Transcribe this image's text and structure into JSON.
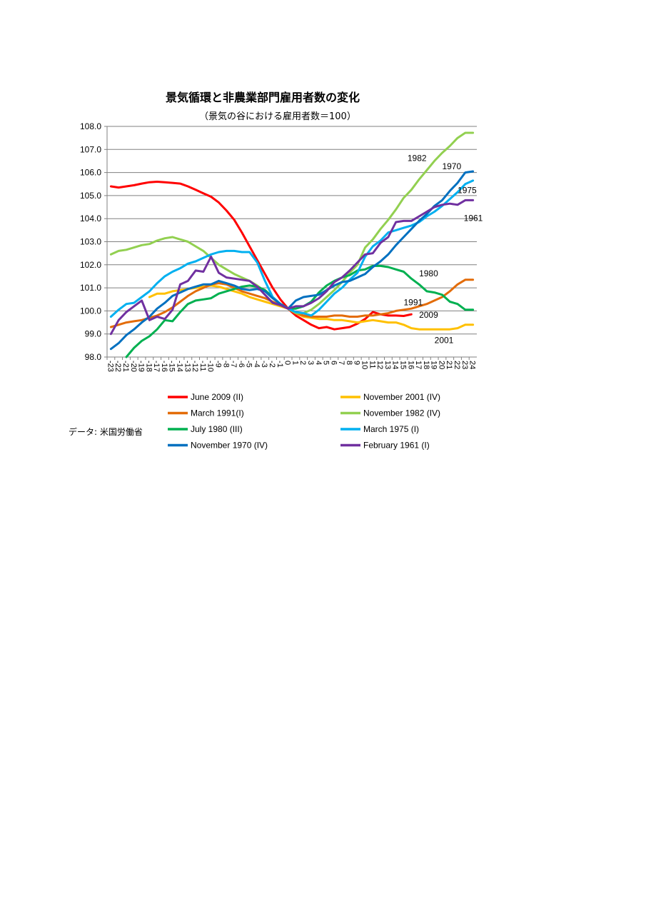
{
  "page": {
    "title": "景気循環と非農業部門雇用者数の変化",
    "subtitle": "（景気の谷における雇用者数＝100）",
    "source": "データ: 米国労働省"
  },
  "chart_data": {
    "type": "line",
    "title": "景気循環と非農業部門雇用者数の変化",
    "subtitle": "（景気の谷における雇用者数＝100）",
    "xlabel": "",
    "ylabel": "",
    "ylim": [
      98.0,
      108.0
    ],
    "yticks": [
      "108.0",
      "107.0",
      "106.0",
      "105.0",
      "104.0",
      "103.0",
      "102.0",
      "101.0",
      "100.0",
      "99.0",
      "98.0"
    ],
    "x": [
      -23,
      -22,
      -21,
      -20,
      -19,
      -18,
      -17,
      -16,
      -15,
      -14,
      -13,
      -12,
      -11,
      -10,
      -9,
      -8,
      -7,
      -6,
      -5,
      -4,
      -3,
      -2,
      -1,
      0,
      1,
      2,
      3,
      4,
      5,
      6,
      7,
      8,
      9,
      10,
      11,
      12,
      13,
      14,
      15,
      16,
      17,
      18,
      19,
      20,
      21,
      22,
      23,
      24
    ],
    "grid": true,
    "legend_position": "bottom",
    "series": [
      {
        "name": "June 2009 (II)",
        "color": "#ff0000",
        "values": [
          105.4,
          105.35,
          105.4,
          105.45,
          105.52,
          105.58,
          105.6,
          105.58,
          105.55,
          105.52,
          105.4,
          105.25,
          105.1,
          104.95,
          104.7,
          104.35,
          103.95,
          103.4,
          102.8,
          102.2,
          101.6,
          101.0,
          100.5,
          100.1,
          99.8,
          99.6,
          99.4,
          99.25,
          99.3,
          99.2,
          99.25,
          99.3,
          99.45,
          99.65,
          99.95,
          99.85,
          99.8,
          99.8,
          99.78,
          99.85,
          null,
          null,
          null,
          null,
          null,
          null,
          null,
          null
        ]
      },
      {
        "name": "November 2001 (IV)",
        "color": "#ffc000",
        "values": [
          null,
          null,
          null,
          null,
          null,
          100.6,
          100.75,
          100.75,
          100.85,
          100.9,
          100.95,
          101.0,
          101.05,
          101.1,
          101.05,
          100.95,
          100.85,
          100.75,
          100.6,
          100.5,
          100.4,
          100.3,
          100.2,
          100.1,
          99.9,
          99.75,
          99.7,
          99.65,
          99.65,
          99.6,
          99.6,
          99.55,
          99.5,
          99.55,
          99.6,
          99.55,
          99.5,
          99.5,
          99.4,
          99.25,
          99.2,
          99.2,
          99.2,
          99.2,
          99.2,
          99.25,
          99.4,
          99.4
        ]
      },
      {
        "name": "March 1991(I)",
        "color": "#e36c09",
        "values": [
          99.3,
          99.4,
          99.5,
          99.55,
          99.6,
          99.7,
          99.8,
          99.95,
          100.15,
          100.4,
          100.65,
          100.85,
          101.0,
          101.15,
          101.2,
          101.15,
          101.0,
          100.85,
          100.75,
          100.65,
          100.55,
          100.4,
          100.25,
          100.1,
          99.9,
          99.8,
          99.75,
          99.75,
          99.75,
          99.8,
          99.8,
          99.75,
          99.75,
          99.8,
          99.8,
          99.85,
          99.9,
          100.0,
          100.05,
          100.1,
          100.2,
          100.3,
          100.45,
          100.6,
          100.85,
          101.15,
          101.35,
          101.35
        ]
      },
      {
        "name": "November 1982 (IV)",
        "color": "#92d050",
        "values": [
          102.45,
          102.6,
          102.65,
          102.75,
          102.85,
          102.9,
          103.05,
          103.15,
          103.2,
          103.1,
          103.0,
          102.8,
          102.6,
          102.3,
          102.0,
          101.8,
          101.6,
          101.45,
          101.3,
          101.1,
          100.85,
          100.55,
          100.3,
          100.1,
          99.9,
          99.9,
          100.05,
          100.3,
          100.6,
          100.9,
          101.25,
          101.65,
          102.0,
          102.75,
          103.1,
          103.55,
          103.95,
          104.4,
          104.9,
          105.25,
          105.7,
          106.1,
          106.5,
          106.85,
          107.15,
          107.5,
          107.72,
          107.72
        ]
      },
      {
        "name": "July 1980 (III)",
        "color": "#00b050",
        "values": [
          null,
          null,
          97.95,
          98.4,
          98.7,
          98.9,
          99.2,
          99.6,
          99.55,
          99.95,
          100.3,
          100.45,
          100.5,
          100.55,
          100.75,
          100.85,
          100.95,
          101.05,
          101.1,
          101.05,
          100.9,
          100.6,
          100.3,
          100.1,
          100.1,
          100.2,
          100.4,
          100.8,
          101.1,
          101.3,
          101.45,
          101.55,
          101.75,
          101.8,
          101.95,
          101.95,
          101.9,
          101.8,
          101.7,
          101.4,
          101.15,
          100.85,
          100.8,
          100.7,
          100.4,
          100.3,
          100.05,
          100.05
        ]
      },
      {
        "name": "March 1975 (I)",
        "color": "#00b0f0",
        "values": [
          99.75,
          100.05,
          100.3,
          100.35,
          100.6,
          100.85,
          101.2,
          101.5,
          101.7,
          101.85,
          102.05,
          102.15,
          102.3,
          102.45,
          102.55,
          102.6,
          102.6,
          102.55,
          102.55,
          102.1,
          101.3,
          100.6,
          100.3,
          100.1,
          99.95,
          99.9,
          99.8,
          100.05,
          100.4,
          100.75,
          101.0,
          101.35,
          101.65,
          102.35,
          102.8,
          103.05,
          103.4,
          103.5,
          103.6,
          103.7,
          103.85,
          104.1,
          104.3,
          104.55,
          104.85,
          105.15,
          105.5,
          105.65
        ]
      },
      {
        "name": "November 1970 (IV)",
        "color": "#0070c0",
        "values": [
          98.35,
          98.6,
          98.95,
          99.2,
          99.5,
          99.75,
          100.1,
          100.35,
          100.65,
          100.8,
          100.95,
          101.05,
          101.15,
          101.15,
          101.3,
          101.2,
          101.1,
          100.95,
          100.9,
          100.95,
          100.85,
          100.55,
          100.3,
          100.1,
          100.45,
          100.6,
          100.65,
          100.7,
          100.9,
          101.1,
          101.25,
          101.3,
          101.45,
          101.6,
          101.9,
          102.15,
          102.45,
          102.85,
          103.2,
          103.55,
          103.9,
          104.2,
          104.55,
          104.8,
          105.2,
          105.55,
          106.0,
          106.05
        ]
      },
      {
        "name": "February 1961 (I)",
        "color": "#7030a0",
        "values": [
          99.0,
          99.6,
          99.95,
          100.2,
          100.45,
          99.6,
          99.75,
          99.65,
          100.05,
          101.15,
          101.3,
          101.75,
          101.7,
          102.35,
          101.65,
          101.45,
          101.4,
          101.35,
          101.3,
          101.05,
          100.7,
          100.35,
          100.25,
          100.1,
          100.2,
          100.2,
          100.35,
          100.55,
          100.85,
          101.25,
          101.45,
          101.75,
          102.1,
          102.45,
          102.5,
          102.95,
          103.2,
          103.85,
          103.9,
          103.9,
          104.1,
          104.3,
          104.5,
          104.6,
          104.65,
          104.6,
          104.8,
          104.8
        ]
      }
    ],
    "annotations": [
      {
        "text": "1982",
        "x": 15.5,
        "y": 106.5
      },
      {
        "text": "1970",
        "x": 20.0,
        "y": 106.15
      },
      {
        "text": "1975",
        "x": 22.0,
        "y": 105.1
      },
      {
        "text": "1961",
        "x": 22.8,
        "y": 103.9
      },
      {
        "text": "1980",
        "x": 17.0,
        "y": 101.5
      },
      {
        "text": "1991",
        "x": 15.0,
        "y": 100.25
      },
      {
        "text": "2009",
        "x": 17.0,
        "y": 99.7
      },
      {
        "text": "2001",
        "x": 19.0,
        "y": 98.6
      }
    ]
  }
}
